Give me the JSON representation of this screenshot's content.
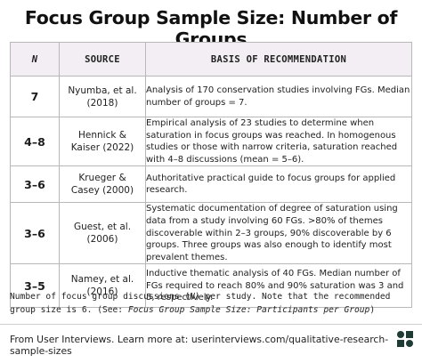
{
  "title": "Focus Group Sample Size: Number of Groups",
  "table": {
    "headers": {
      "n": "N",
      "source": "SOURCE",
      "basis": "BASIS OF RECOMMENDATION"
    },
    "rows": [
      {
        "n": "7",
        "source_line1": "Nyumba, et al.",
        "source_line2": "(2018)",
        "basis": "Analysis of 170 conservation studies involving FGs. Median number of groups = 7."
      },
      {
        "n": "4–8",
        "source_line1": "Hennick &",
        "source_line2": "Kaiser (2022)",
        "basis": "Empirical analysis of 23 studies to determine when saturation in focus groups was reached. In homogenous studies or those with narrow criteria, saturation reached with 4–8 discussions (mean = 5–6)."
      },
      {
        "n": "3–6",
        "source_line1": "Krueger &",
        "source_line2": "Casey (2000)",
        "basis": "Authoritative practical guide to focus groups for applied research."
      },
      {
        "n": "3–6",
        "source_line1": "Guest, et al.",
        "source_line2": "(2006)",
        "basis": "Systematic documentation of degree of saturation using data from a study involving 60 FGs. >80% of themes discoverable within 2–3 groups, 90% discoverable by 6 groups. Three groups was also enough to identify most prevalent themes."
      },
      {
        "n": "3–5",
        "source_line1": "Namey, et al.",
        "source_line2": "(2016)",
        "basis": "Inductive thematic analysis of 40 FGs. Median number of FGs required to reach 80% and 90% saturation was 3 and 5, respectively."
      }
    ]
  },
  "note": {
    "part1": "Number of focus group discussions (",
    "n_italic": "N",
    "part2": ") per study. Note that the recommended group size is 6. (See: ",
    "link_italic": "Focus Group Sample Size: Participants per Group",
    "part3": ")"
  },
  "footer": {
    "text": "From User Interviews. Learn more at: userinterviews.com/qualitative-research-sample-sizes",
    "logo_icon": "user-interviews-logo-icon",
    "logo_color": "#1f3b36"
  }
}
